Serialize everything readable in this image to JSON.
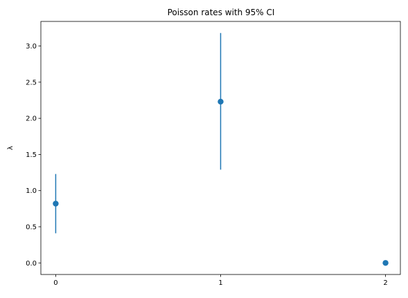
{
  "chart_data": {
    "type": "scatter",
    "title": "Poisson rates with 95% CI",
    "xlabel": "",
    "ylabel": "λ",
    "x": [
      0,
      1,
      2
    ],
    "y": [
      0.82,
      2.23,
      0.0
    ],
    "ci_lower": [
      0.41,
      1.29,
      null
    ],
    "ci_upper": [
      1.23,
      3.18,
      null
    ],
    "xlim": [
      -0.09,
      2.09
    ],
    "ylim": [
      -0.16,
      3.34
    ],
    "xticks": [
      0,
      1,
      2
    ],
    "xtick_labels": [
      "0",
      "1",
      "2"
    ],
    "yticks": [
      0.0,
      0.5,
      1.0,
      1.5,
      2.0,
      2.5,
      3.0
    ],
    "ytick_labels": [
      "0.0",
      "0.5",
      "1.0",
      "1.5",
      "2.0",
      "2.5",
      "3.0"
    ],
    "color": "#1f77b4",
    "grid": false
  }
}
